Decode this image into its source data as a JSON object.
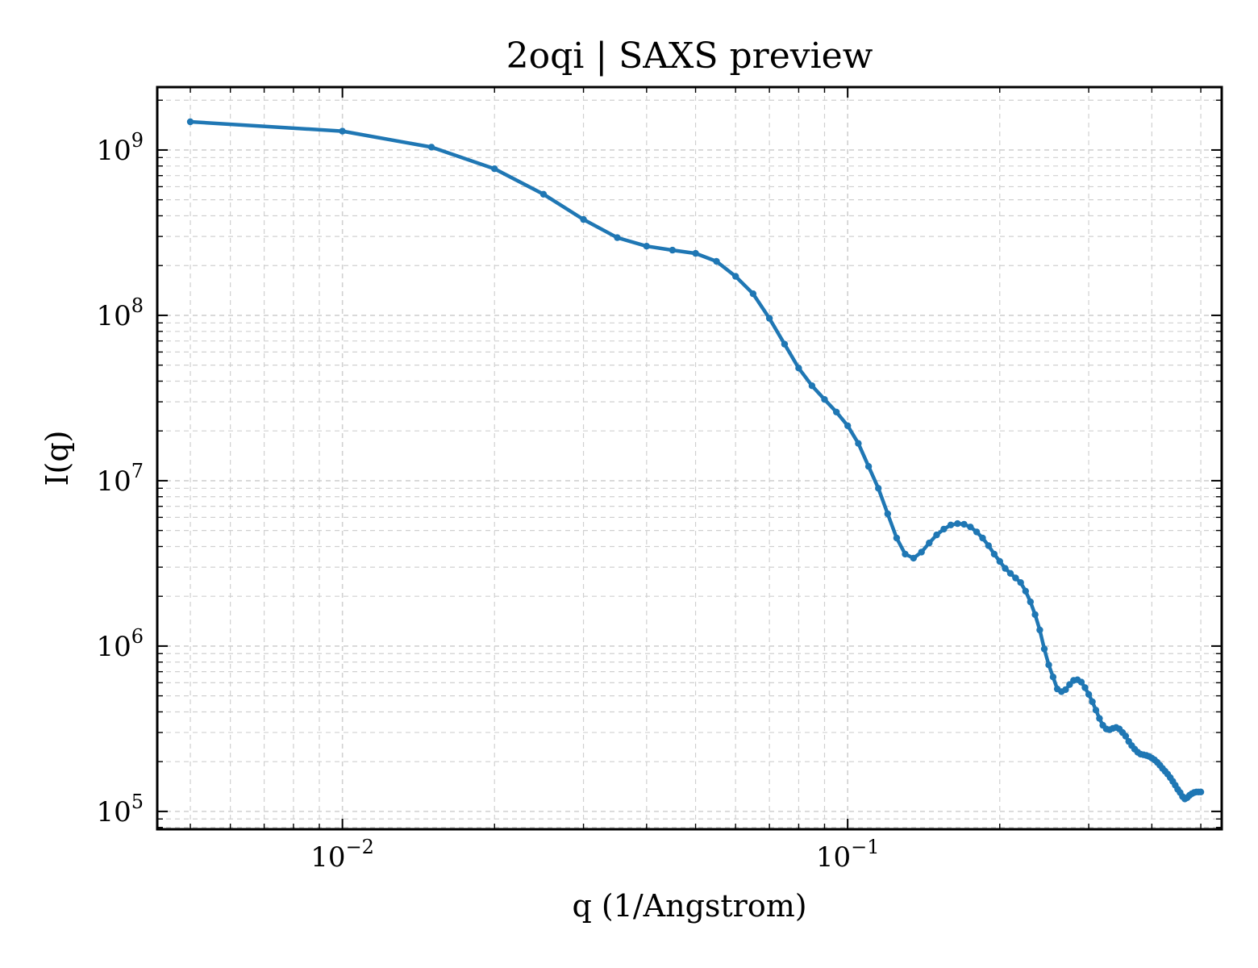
{
  "chart_data": {
    "type": "line",
    "title": "2oqi | SAXS preview",
    "xlabel": "q (1/Angstrom)",
    "ylabel": "I(q)",
    "xscale": "log",
    "yscale": "log",
    "xlim": [
      0.0043,
      0.55
    ],
    "ylim": [
      78000,
      2400000000
    ],
    "grid": true,
    "legend": "none",
    "x_ticks": [
      {
        "value": 0.01,
        "base": "10",
        "exp": "−2"
      },
      {
        "value": 0.1,
        "base": "10",
        "exp": "−1"
      }
    ],
    "y_ticks": [
      {
        "value": 100000,
        "base": "10",
        "exp": "5"
      },
      {
        "value": 1000000,
        "base": "10",
        "exp": "6"
      },
      {
        "value": 10000000,
        "base": "10",
        "exp": "7"
      },
      {
        "value": 100000000,
        "base": "10",
        "exp": "8"
      },
      {
        "value": 1000000000,
        "base": "10",
        "exp": "9"
      }
    ],
    "series": [
      {
        "color": "#1f77b4",
        "x": [
          0.005,
          0.01,
          0.015,
          0.02,
          0.025,
          0.03,
          0.035,
          0.04,
          0.045,
          0.05,
          0.055,
          0.06,
          0.065,
          0.07,
          0.075,
          0.08,
          0.085,
          0.09,
          0.095,
          0.1,
          0.105,
          0.11,
          0.115,
          0.12,
          0.125,
          0.13,
          0.135,
          0.14,
          0.145,
          0.15,
          0.155,
          0.16,
          0.165,
          0.17,
          0.175,
          0.18,
          0.185,
          0.19,
          0.195,
          0.2,
          0.205,
          0.21,
          0.215,
          0.22,
          0.225,
          0.23,
          0.235,
          0.24,
          0.245,
          0.25,
          0.255,
          0.26,
          0.265,
          0.27,
          0.275,
          0.28,
          0.285,
          0.29,
          0.295,
          0.3,
          0.305,
          0.31,
          0.315,
          0.32,
          0.325,
          0.33,
          0.335,
          0.34,
          0.345,
          0.35,
          0.355,
          0.36,
          0.365,
          0.37,
          0.375,
          0.38,
          0.385,
          0.39,
          0.395,
          0.4,
          0.405,
          0.41,
          0.415,
          0.42,
          0.425,
          0.43,
          0.435,
          0.44,
          0.445,
          0.45,
          0.455,
          0.46,
          0.465,
          0.47,
          0.475,
          0.48,
          0.485,
          0.49,
          0.495,
          0.5
        ],
        "y": [
          1480000000,
          1300000000,
          1040000000,
          770000000,
          540000000,
          380000000,
          295000000,
          262000000,
          248000000,
          237000000,
          212000000,
          172000000,
          135000000,
          96000000,
          67000000,
          48000000,
          37500000,
          31000000,
          26000000,
          21500000,
          16800000,
          12200000,
          9000000,
          6300000,
          4500000,
          3600000,
          3400000,
          3700000,
          4200000,
          4700000,
          5100000,
          5400000,
          5500000,
          5450000,
          5250000,
          4900000,
          4500000,
          4050000,
          3600000,
          3250000,
          2950000,
          2750000,
          2580000,
          2420000,
          2150000,
          1850000,
          1550000,
          1250000,
          960000,
          770000,
          650000,
          550000,
          530000,
          545000,
          585000,
          620000,
          625000,
          605000,
          560000,
          510000,
          460000,
          410000,
          365000,
          332000,
          315000,
          312000,
          318000,
          322000,
          315000,
          300000,
          285000,
          265000,
          250000,
          238000,
          228000,
          222000,
          220000,
          218000,
          215000,
          210000,
          205000,
          198000,
          190000,
          182000,
          175000,
          168000,
          160000,
          152000,
          144000,
          136000,
          130000,
          123000,
          119000,
          121000,
          125000,
          128000,
          130000,
          131000,
          131000,
          131000
        ]
      }
    ]
  }
}
